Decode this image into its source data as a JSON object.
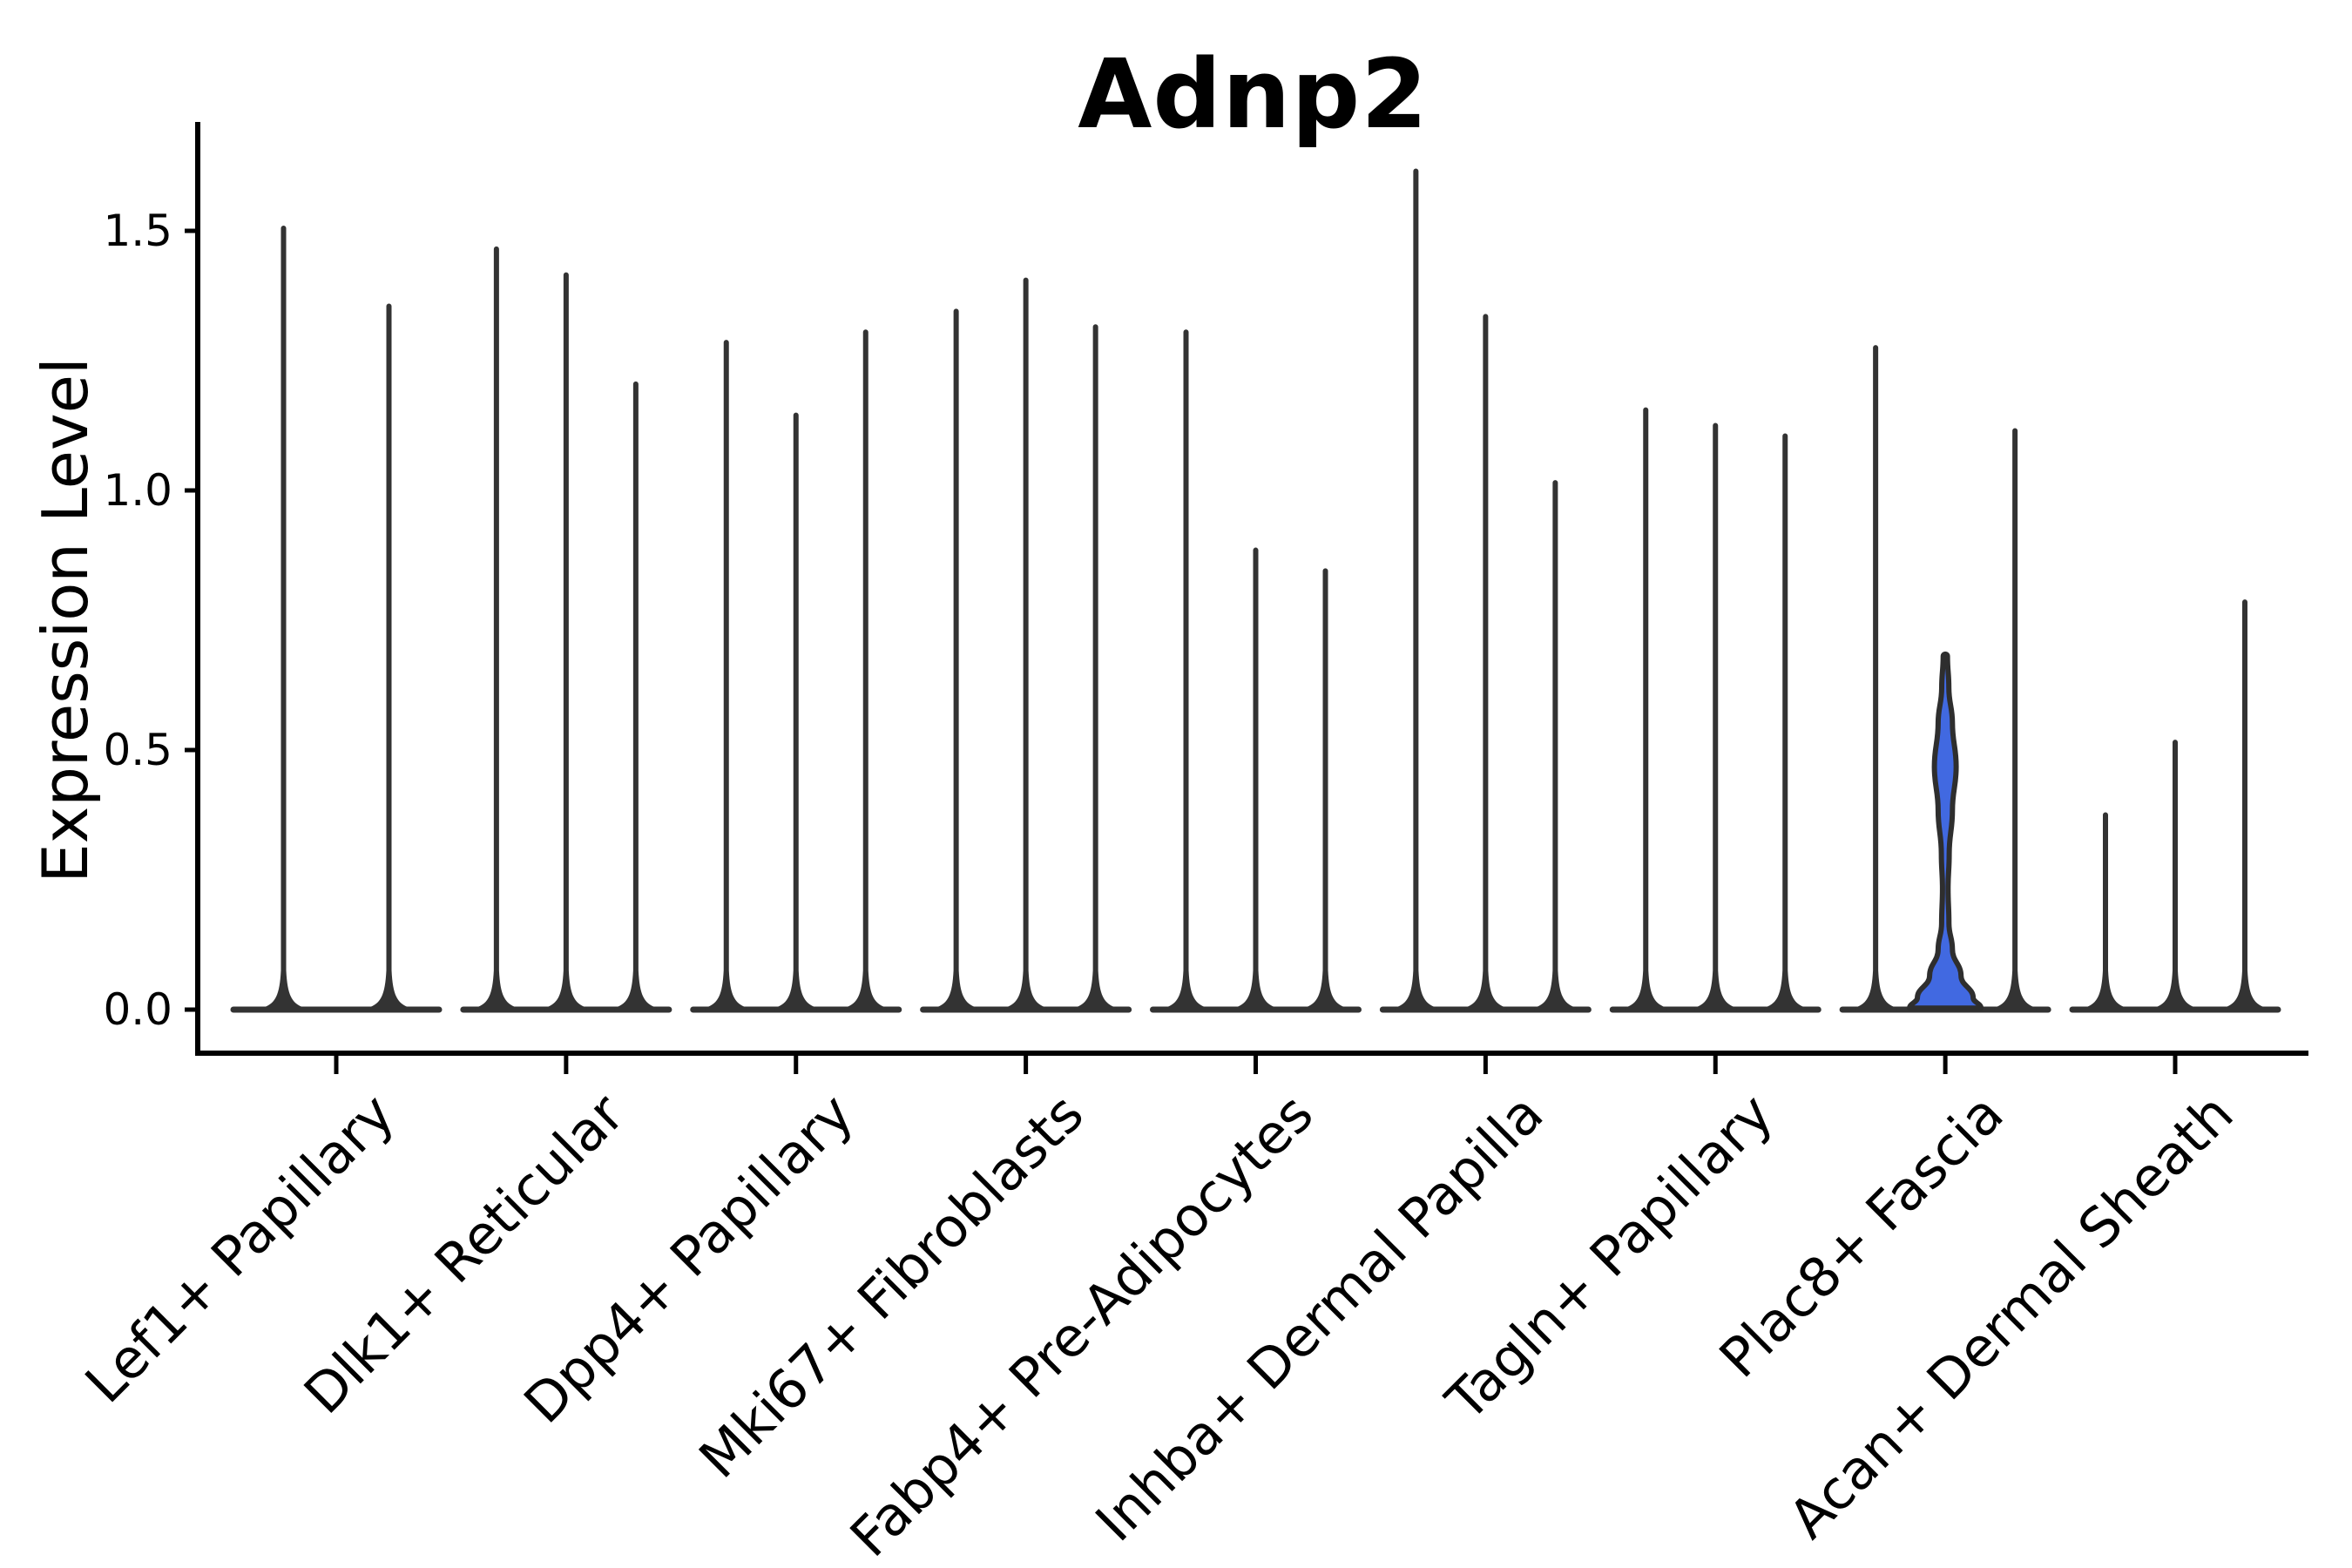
{
  "chart_data": {
    "type": "violin",
    "title": "Adnp2",
    "xlabel": "",
    "ylabel": "Expression Level",
    "y_tick_labels": [
      "0.0",
      "0.5",
      "1.0",
      "1.5"
    ],
    "y_tick_values": [
      0.0,
      0.5,
      1.0,
      1.5
    ],
    "ylim": [
      -0.08,
      1.71
    ],
    "grid": false,
    "legend": "none",
    "colors": {
      "violin_line": "#2e2e2e",
      "violin_fill_dark": "#333333",
      "highlight_fill": "#4169e1",
      "axis": "#000000",
      "text": "#000000",
      "background": "#ffffff"
    },
    "categories": [
      "Lef1+ Papillary",
      "Dlk1+ Reticular",
      "Dpp4+ Papillary",
      "Mki67+ Fibroblasts",
      "Fabp4+ Pre-Adipocytes",
      "Inhba+ Dermal Papilla",
      "Tagln+ Papillary",
      "Plac8+ Fascia",
      "Acan+ Dermal Sheath"
    ],
    "groups": [
      {
        "label": "Lef1+ Papillary",
        "violins": [
          {
            "max": 1.51
          },
          {
            "max": 1.36
          }
        ]
      },
      {
        "label": "Dlk1+ Reticular",
        "violins": [
          {
            "max": 1.47
          },
          {
            "max": 1.42
          },
          {
            "max": 1.21
          }
        ]
      },
      {
        "label": "Dpp4+ Papillary",
        "violins": [
          {
            "max": 1.29
          },
          {
            "max": 1.15
          },
          {
            "max": 1.31
          }
        ]
      },
      {
        "label": "Mki67+ Fibroblasts",
        "violins": [
          {
            "max": 1.35
          },
          {
            "max": 1.41
          },
          {
            "max": 1.32
          }
        ]
      },
      {
        "label": "Fabp4+ Pre-Adipocytes",
        "violins": [
          {
            "max": 1.31
          },
          {
            "max": 0.89
          },
          {
            "max": 0.85
          }
        ]
      },
      {
        "label": "Inhba+ Dermal Papilla",
        "violins": [
          {
            "max": 1.62
          },
          {
            "max": 1.34
          },
          {
            "max": 1.02
          }
        ]
      },
      {
        "label": "Tagln+ Papillary",
        "violins": [
          {
            "max": 1.16
          },
          {
            "max": 1.13
          },
          {
            "max": 1.11
          }
        ]
      },
      {
        "label": "Plac8+ Fascia",
        "violins": [
          {
            "max": 1.28
          },
          {
            "max": 0.68,
            "filled": true,
            "fill": "#4169e1",
            "profile": [
              [
                0.681,
                0.06
              ],
              [
                0.62,
                0.1
              ],
              [
                0.552,
                0.2
              ],
              [
                0.468,
                0.305
              ],
              [
                0.384,
                0.2
              ],
              [
                0.3,
                0.11
              ],
              [
                0.233,
                0.078
              ],
              [
                0.166,
                0.102
              ],
              [
                0.116,
                0.2
              ],
              [
                0.065,
                0.44
              ],
              [
                0.023,
                0.78
              ],
              [
                0.003,
                1.0
              ]
            ]
          },
          {
            "max": 1.12
          }
        ]
      },
      {
        "label": "Acan+ Dermal Sheath",
        "violins": [
          {
            "max": 0.38
          },
          {
            "max": 0.52
          },
          {
            "max": 0.79
          }
        ]
      }
    ]
  }
}
